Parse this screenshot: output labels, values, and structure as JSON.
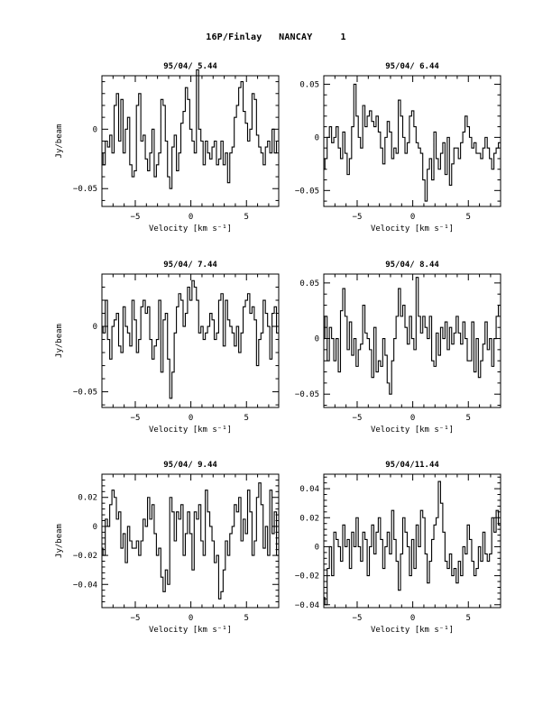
{
  "page": {
    "title": "16P/Finlay   NANCAY     1"
  },
  "chart_data": [
    {
      "type": "line",
      "title": "95/04/ 5.44",
      "xlabel": "Velocity [km s⁻¹]",
      "ylabel": "Jy/beam",
      "xlim": [
        -8.0,
        7.9
      ],
      "ylim": [
        -0.065,
        0.045
      ],
      "xticks": [
        -5,
        0,
        5
      ],
      "xtick_labels": [
        "−5",
        "0",
        "5"
      ],
      "yticks": [
        -0.05,
        0
      ],
      "ytick_labels": [
        "−0.05",
        "0"
      ],
      "step": true,
      "x": [
        -8.0,
        -7.8,
        -7.6,
        -7.4,
        -7.2,
        -7.0,
        -6.8,
        -6.6,
        -6.4,
        -6.2,
        -6.0,
        -5.8,
        -5.6,
        -5.4,
        -5.2,
        -5.0,
        -4.8,
        -4.6,
        -4.4,
        -4.2,
        -4.0,
        -3.8,
        -3.6,
        -3.4,
        -3.2,
        -3.0,
        -2.8,
        -2.6,
        -2.4,
        -2.2,
        -2.0,
        -1.8,
        -1.6,
        -1.4,
        -1.2,
        -1.0,
        -0.8,
        -0.6,
        -0.4,
        -0.2,
        0.0,
        0.2,
        0.4,
        0.6,
        0.8,
        1.0,
        1.2,
        1.4,
        1.6,
        1.8,
        2.0,
        2.2,
        2.4,
        2.6,
        2.8,
        3.0,
        3.2,
        3.4,
        3.6,
        3.8,
        4.0,
        4.2,
        4.4,
        4.6,
        4.8,
        5.0,
        5.2,
        5.4,
        5.6,
        5.8,
        6.0,
        6.2,
        6.4,
        6.6,
        6.8,
        7.0,
        7.2,
        7.4,
        7.6,
        7.8
      ],
      "y": [
        -0.02,
        -0.03,
        -0.01,
        -0.015,
        -0.005,
        -0.02,
        0.02,
        0.03,
        -0.01,
        0.025,
        -0.02,
        0.0,
        0.01,
        -0.03,
        -0.04,
        -0.035,
        0.02,
        0.03,
        -0.01,
        -0.005,
        -0.025,
        -0.035,
        -0.02,
        0.0,
        -0.04,
        -0.03,
        -0.02,
        0.025,
        0.02,
        -0.01,
        -0.04,
        -0.05,
        -0.015,
        -0.005,
        -0.035,
        -0.02,
        0.005,
        0.015,
        0.035,
        0.025,
        0.0,
        -0.01,
        -0.02,
        0.05,
        0.0,
        -0.01,
        -0.03,
        -0.01,
        -0.02,
        -0.025,
        -0.015,
        -0.01,
        -0.03,
        -0.025,
        -0.01,
        -0.03,
        -0.02,
        -0.045,
        -0.02,
        -0.015,
        0.01,
        0.02,
        0.035,
        0.04,
        0.015,
        0.005,
        -0.01,
        0.0,
        0.03,
        0.025,
        -0.005,
        -0.015,
        -0.02,
        -0.03,
        -0.015,
        -0.01,
        -0.02,
        0.0,
        -0.02,
        -0.01
      ]
    },
    {
      "type": "line",
      "title": "95/04/ 6.44",
      "xlabel": "Velocity [km s⁻¹]",
      "ylabel": "",
      "xlim": [
        -8.0,
        7.9
      ],
      "ylim": [
        -0.065,
        0.058
      ],
      "xticks": [
        -5,
        0,
        5
      ],
      "xtick_labels": [
        "−5",
        "0",
        "5"
      ],
      "yticks": [
        -0.05,
        0,
        0.05
      ],
      "ytick_labels": [
        "−0.05",
        "0",
        "0.05"
      ],
      "step": true,
      "x": [
        -8.0,
        -7.8,
        -7.6,
        -7.4,
        -7.2,
        -7.0,
        -6.8,
        -6.6,
        -6.4,
        -6.2,
        -6.0,
        -5.8,
        -5.6,
        -5.4,
        -5.2,
        -5.0,
        -4.8,
        -4.6,
        -4.4,
        -4.2,
        -4.0,
        -3.8,
        -3.6,
        -3.4,
        -3.2,
        -3.0,
        -2.8,
        -2.6,
        -2.4,
        -2.2,
        -2.0,
        -1.8,
        -1.6,
        -1.4,
        -1.2,
        -1.0,
        -0.8,
        -0.6,
        -0.4,
        -0.2,
        0.0,
        0.2,
        0.4,
        0.6,
        0.8,
        1.0,
        1.2,
        1.4,
        1.6,
        1.8,
        2.0,
        2.2,
        2.4,
        2.6,
        2.8,
        3.0,
        3.2,
        3.4,
        3.6,
        3.8,
        4.0,
        4.2,
        4.4,
        4.6,
        4.8,
        5.0,
        5.2,
        5.4,
        5.6,
        5.8,
        6.0,
        6.2,
        6.4,
        6.6,
        6.8,
        7.0,
        7.2,
        7.4,
        7.6,
        7.8
      ],
      "y": [
        -0.03,
        -0.02,
        0.0,
        0.01,
        -0.005,
        0.0,
        0.01,
        -0.01,
        -0.02,
        0.005,
        -0.015,
        -0.035,
        -0.02,
        0.01,
        0.05,
        0.02,
        0.0,
        -0.01,
        0.03,
        0.01,
        0.02,
        0.025,
        0.015,
        0.01,
        0.02,
        0.005,
        -0.01,
        -0.025,
        0.0,
        0.015,
        0.005,
        -0.02,
        -0.01,
        -0.015,
        0.035,
        0.02,
        0.0,
        -0.015,
        -0.005,
        0.02,
        0.025,
        0.01,
        -0.005,
        -0.01,
        -0.015,
        -0.04,
        -0.06,
        -0.03,
        -0.02,
        -0.04,
        0.005,
        -0.02,
        -0.03,
        -0.015,
        -0.005,
        -0.035,
        0.0,
        -0.045,
        -0.025,
        -0.01,
        -0.01,
        -0.02,
        -0.005,
        0.005,
        0.02,
        0.01,
        0.0,
        -0.01,
        -0.005,
        -0.015,
        -0.015,
        -0.02,
        -0.01,
        0.0,
        -0.01,
        -0.02,
        -0.03,
        -0.015,
        -0.01,
        -0.005
      ]
    },
    {
      "type": "line",
      "title": "95/04/ 7.44",
      "xlabel": "Velocity [km s⁻¹]",
      "ylabel": "Jy/beam",
      "xlim": [
        -8.0,
        7.9
      ],
      "ylim": [
        -0.062,
        0.04
      ],
      "xticks": [
        -5,
        0,
        5
      ],
      "xtick_labels": [
        "−5",
        "0",
        "5"
      ],
      "yticks": [
        -0.05,
        0
      ],
      "ytick_labels": [
        "−0.05",
        "0"
      ],
      "step": true,
      "x": [
        -8.0,
        -7.8,
        -7.6,
        -7.4,
        -7.2,
        -7.0,
        -6.8,
        -6.6,
        -6.4,
        -6.2,
        -6.0,
        -5.8,
        -5.6,
        -5.4,
        -5.2,
        -5.0,
        -4.8,
        -4.6,
        -4.4,
        -4.2,
        -4.0,
        -3.8,
        -3.6,
        -3.4,
        -3.2,
        -3.0,
        -2.8,
        -2.6,
        -2.4,
        -2.2,
        -2.0,
        -1.8,
        -1.6,
        -1.4,
        -1.2,
        -1.0,
        -0.8,
        -0.6,
        -0.4,
        -0.2,
        0.0,
        0.2,
        0.4,
        0.6,
        0.8,
        1.0,
        1.2,
        1.4,
        1.6,
        1.8,
        2.0,
        2.2,
        2.4,
        2.6,
        2.8,
        3.0,
        3.2,
        3.4,
        3.6,
        3.8,
        4.0,
        4.2,
        4.4,
        4.6,
        4.8,
        5.0,
        5.2,
        5.4,
        5.6,
        5.8,
        6.0,
        6.2,
        6.4,
        6.6,
        6.8,
        7.0,
        7.2,
        7.4,
        7.6,
        7.8
      ],
      "y": [
        0.0,
        -0.005,
        0.02,
        -0.01,
        -0.025,
        0.0,
        0.005,
        0.01,
        -0.015,
        -0.02,
        0.015,
        0.0,
        -0.005,
        -0.015,
        0.02,
        0.005,
        -0.02,
        -0.01,
        0.015,
        0.02,
        0.01,
        0.015,
        -0.01,
        -0.025,
        -0.015,
        -0.01,
        0.02,
        -0.035,
        0.005,
        0.01,
        -0.025,
        -0.055,
        -0.035,
        -0.005,
        0.015,
        0.025,
        0.02,
        0.0,
        0.01,
        0.03,
        0.02,
        0.035,
        0.03,
        0.02,
        -0.005,
        0.0,
        -0.01,
        -0.005,
        0.0,
        0.01,
        0.005,
        -0.01,
        -0.005,
        0.02,
        0.025,
        -0.015,
        0.02,
        0.005,
        0.0,
        -0.005,
        -0.015,
        0.0,
        -0.02,
        -0.005,
        0.015,
        0.02,
        0.025,
        0.01,
        0.015,
        0.005,
        -0.03,
        -0.01,
        -0.005,
        0.02,
        0.01,
        0.0,
        -0.025,
        0.01,
        0.015,
        -0.005
      ]
    },
    {
      "type": "line",
      "title": "95/04/ 8.44",
      "xlabel": "Velocity [km s⁻¹]",
      "ylabel": "",
      "xlim": [
        -8.0,
        7.9
      ],
      "ylim": [
        -0.062,
        0.058
      ],
      "xticks": [
        -5,
        0,
        5
      ],
      "xtick_labels": [
        "−5",
        "0",
        "5"
      ],
      "yticks": [
        -0.05,
        0,
        0.05
      ],
      "ytick_labels": [
        "−0.05",
        "0",
        "0.05"
      ],
      "step": true,
      "x": [
        -8.0,
        -7.8,
        -7.6,
        -7.4,
        -7.2,
        -7.0,
        -6.8,
        -6.6,
        -6.4,
        -6.2,
        -6.0,
        -5.8,
        -5.6,
        -5.4,
        -5.2,
        -5.0,
        -4.8,
        -4.6,
        -4.4,
        -4.2,
        -4.0,
        -3.8,
        -3.6,
        -3.4,
        -3.2,
        -3.0,
        -2.8,
        -2.6,
        -2.4,
        -2.2,
        -2.0,
        -1.8,
        -1.6,
        -1.4,
        -1.2,
        -1.0,
        -0.8,
        -0.6,
        -0.4,
        -0.2,
        0.0,
        0.2,
        0.4,
        0.6,
        0.8,
        1.0,
        1.2,
        1.4,
        1.6,
        1.8,
        2.0,
        2.2,
        2.4,
        2.6,
        2.8,
        3.0,
        3.2,
        3.4,
        3.6,
        3.8,
        4.0,
        4.2,
        4.4,
        4.6,
        4.8,
        5.0,
        5.2,
        5.4,
        5.6,
        5.8,
        6.0,
        6.2,
        6.4,
        6.6,
        6.8,
        7.0,
        7.2,
        7.4,
        7.6,
        7.8
      ],
      "y": [
        0.0,
        0.02,
        -0.02,
        0.01,
        0.0,
        -0.02,
        0.0,
        -0.03,
        0.025,
        0.045,
        0.02,
        -0.01,
        0.015,
        -0.015,
        0.0,
        -0.025,
        -0.01,
        -0.005,
        0.03,
        0.005,
        0.0,
        -0.01,
        -0.035,
        0.01,
        -0.03,
        -0.02,
        -0.025,
        0.0,
        -0.015,
        -0.04,
        -0.05,
        -0.02,
        0.0,
        0.02,
        0.045,
        0.02,
        0.03,
        0.01,
        -0.005,
        0.02,
        0.0,
        -0.01,
        0.055,
        0.02,
        0.005,
        0.02,
        0.01,
        0.0,
        0.02,
        -0.02,
        -0.025,
        0.005,
        -0.015,
        0.01,
        0.0,
        0.015,
        -0.01,
        0.01,
        -0.005,
        0.005,
        0.02,
        0.005,
        -0.005,
        0.015,
        0.0,
        -0.02,
        -0.02,
        0.015,
        -0.03,
        0.0,
        -0.035,
        -0.02,
        -0.005,
        0.015,
        -0.01,
        0.0,
        -0.025,
        0.0,
        0.02,
        0.03
      ]
    },
    {
      "type": "line",
      "title": "95/04/ 9.44",
      "xlabel": "Velocity [km s⁻¹]",
      "ylabel": "Jy/beam",
      "xlim": [
        -8.0,
        7.9
      ],
      "ylim": [
        -0.056,
        0.036
      ],
      "xticks": [
        -5,
        0,
        5
      ],
      "xtick_labels": [
        "−5",
        "0",
        "5"
      ],
      "yticks": [
        -0.04,
        -0.02,
        0,
        0.02
      ],
      "ytick_labels": [
        "−0.04",
        "−0.02",
        "0",
        "0.02"
      ],
      "step": true,
      "x": [
        -8.0,
        -7.8,
        -7.6,
        -7.4,
        -7.2,
        -7.0,
        -6.8,
        -6.6,
        -6.4,
        -6.2,
        -6.0,
        -5.8,
        -5.6,
        -5.4,
        -5.2,
        -5.0,
        -4.8,
        -4.6,
        -4.4,
        -4.2,
        -4.0,
        -3.8,
        -3.6,
        -3.4,
        -3.2,
        -3.0,
        -2.8,
        -2.6,
        -2.4,
        -2.2,
        -2.0,
        -1.8,
        -1.6,
        -1.4,
        -1.2,
        -1.0,
        -0.8,
        -0.6,
        -0.4,
        -0.2,
        0.0,
        0.2,
        0.4,
        0.6,
        0.8,
        1.0,
        1.2,
        1.4,
        1.6,
        1.8,
        2.0,
        2.2,
        2.4,
        2.6,
        2.8,
        3.0,
        3.2,
        3.4,
        3.6,
        3.8,
        4.0,
        4.2,
        4.4,
        4.6,
        4.8,
        5.0,
        5.2,
        5.4,
        5.6,
        5.8,
        6.0,
        6.2,
        6.4,
        6.6,
        6.8,
        7.0,
        7.2,
        7.4,
        7.6,
        7.8
      ],
      "y": [
        -0.015,
        -0.02,
        0.005,
        0.0,
        0.015,
        0.025,
        0.02,
        0.005,
        0.01,
        -0.015,
        -0.005,
        -0.025,
        0.0,
        -0.01,
        -0.015,
        -0.015,
        -0.01,
        -0.02,
        -0.01,
        0.005,
        0.0,
        0.02,
        0.005,
        0.015,
        -0.005,
        -0.02,
        -0.015,
        -0.035,
        -0.045,
        -0.03,
        -0.04,
        0.02,
        0.01,
        -0.01,
        0.01,
        0.005,
        0.015,
        -0.02,
        -0.005,
        0.01,
        -0.005,
        -0.03,
        0.01,
        0.005,
        0.015,
        -0.01,
        -0.02,
        0.025,
        0.01,
        0.0,
        -0.01,
        -0.025,
        -0.02,
        -0.05,
        -0.045,
        -0.03,
        -0.01,
        -0.02,
        -0.005,
        0.0,
        0.015,
        0.01,
        0.02,
        -0.01,
        0.005,
        -0.005,
        0.025,
        0.01,
        -0.02,
        -0.01,
        0.02,
        0.03,
        0.015,
        -0.015,
        0.0,
        -0.02,
        0.025,
        -0.005,
        0.01,
        -0.02
      ]
    },
    {
      "type": "line",
      "title": "95/04/11.44",
      "xlabel": "Velocity [km s⁻¹]",
      "ylabel": "",
      "xlim": [
        -8.0,
        7.9
      ],
      "ylim": [
        -0.042,
        0.05
      ],
      "xticks": [
        -5,
        0,
        5
      ],
      "xtick_labels": [
        "−5",
        "0",
        "5"
      ],
      "yticks": [
        -0.04,
        -0.02,
        0,
        0.02,
        0.04
      ],
      "ytick_labels": [
        "−0.04",
        "−0.02",
        "0",
        "0.02",
        "0.04"
      ],
      "step": true,
      "x": [
        -8.0,
        -7.8,
        -7.6,
        -7.4,
        -7.2,
        -7.0,
        -6.8,
        -6.6,
        -6.4,
        -6.2,
        -6.0,
        -5.8,
        -5.6,
        -5.4,
        -5.2,
        -5.0,
        -4.8,
        -4.6,
        -4.4,
        -4.2,
        -4.0,
        -3.8,
        -3.6,
        -3.4,
        -3.2,
        -3.0,
        -2.8,
        -2.6,
        -2.4,
        -2.2,
        -2.0,
        -1.8,
        -1.6,
        -1.4,
        -1.2,
        -1.0,
        -0.8,
        -0.6,
        -0.4,
        -0.2,
        0.0,
        0.2,
        0.4,
        0.6,
        0.8,
        1.0,
        1.2,
        1.4,
        1.6,
        1.8,
        2.0,
        2.2,
        2.4,
        2.6,
        2.8,
        3.0,
        3.2,
        3.4,
        3.6,
        3.8,
        4.0,
        4.2,
        4.4,
        4.6,
        4.8,
        5.0,
        5.2,
        5.4,
        5.6,
        5.8,
        6.0,
        6.2,
        6.4,
        6.6,
        6.8,
        7.0,
        7.2,
        7.4,
        7.6,
        7.8
      ],
      "y": [
        -0.035,
        -0.04,
        -0.015,
        0.0,
        -0.02,
        0.01,
        0.005,
        0.0,
        -0.01,
        0.015,
        0.0,
        0.005,
        -0.015,
        0.01,
        0.0,
        0.02,
        0.0,
        -0.01,
        0.01,
        0.005,
        -0.02,
        0.0,
        0.015,
        -0.005,
        0.01,
        0.02,
        0.005,
        -0.015,
        0.0,
        0.01,
        -0.005,
        0.025,
        0.005,
        -0.01,
        -0.03,
        -0.005,
        0.02,
        0.01,
        0.0,
        -0.02,
        0.005,
        -0.015,
        0.015,
        0.0,
        0.025,
        0.02,
        -0.005,
        -0.025,
        -0.01,
        0.005,
        0.015,
        0.02,
        0.045,
        0.03,
        0.01,
        -0.01,
        -0.015,
        -0.005,
        -0.02,
        -0.015,
        -0.025,
        -0.01,
        -0.02,
        0.0,
        -0.005,
        0.015,
        0.005,
        -0.01,
        -0.02,
        -0.015,
        0.0,
        -0.01,
        0.01,
        -0.005,
        -0.01,
        -0.005,
        0.02,
        0.01,
        0.025,
        0.015
      ]
    }
  ]
}
